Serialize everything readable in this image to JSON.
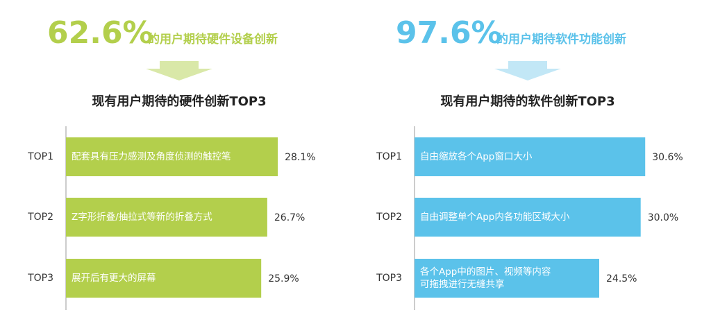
{
  "chart_data": [
    {
      "type": "bar",
      "orientation": "horizontal",
      "headline": {
        "value": 62.6,
        "label": "62.6%"
      },
      "headline_text": "的用户期待硬件设备创新",
      "title": "现有用户期待的硬件创新TOP3",
      "categories": [
        "TOP1",
        "TOP2",
        "TOP3"
      ],
      "bar_labels": [
        [
          "配套具有压力感测及角度侦测的触控笔"
        ],
        [
          "Z字形折叠/抽拉式等新的折叠方式"
        ],
        [
          "展开后有更大的屏幕"
        ]
      ],
      "values": [
        28.1,
        26.7,
        25.9
      ],
      "value_labels": [
        "28.1%",
        "26.7%",
        "25.9%"
      ],
      "color": "#b3cf4c",
      "arrow_color": "#d9e8a8",
      "xlim": [
        0,
        35
      ]
    },
    {
      "type": "bar",
      "orientation": "horizontal",
      "headline": {
        "value": 97.6,
        "label": "97.6%"
      },
      "headline_text": "的用户期待软件功能创新",
      "title": "现有用户期待的软件创新TOP3",
      "categories": [
        "TOP1",
        "TOP2",
        "TOP3"
      ],
      "bar_labels": [
        [
          "自由缩放各个App窗口大小"
        ],
        [
          "自由调整单个App内各功能区域大小"
        ],
        [
          "各个App中的图片、视频等内容",
          "可拖拽进行无缝共享"
        ]
      ],
      "values": [
        30.6,
        30.0,
        24.5
      ],
      "value_labels": [
        "30.6%",
        "30.0%",
        "24.5%"
      ],
      "color": "#5bc2ea",
      "arrow_color": "#c2e7f6",
      "xlim": [
        0,
        35
      ]
    }
  ]
}
